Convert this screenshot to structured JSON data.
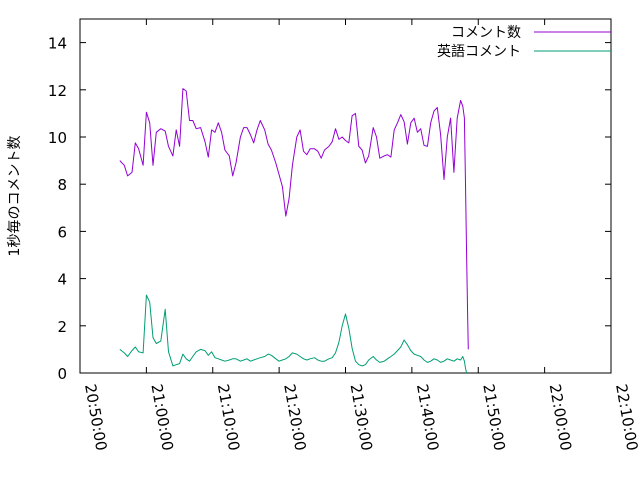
{
  "chart_data": {
    "type": "line",
    "title": "",
    "xlabel": "",
    "ylabel": "1秒毎のコメント数",
    "xlim": [
      "20:50:00",
      "22:10:00"
    ],
    "ylim": [
      0,
      15
    ],
    "x_ticks": [
      "20:50:00",
      "21:00:00",
      "21:10:00",
      "21:20:00",
      "21:30:00",
      "21:40:00",
      "21:50:00",
      "22:00:00",
      "22:10:00"
    ],
    "y_ticks": [
      0,
      2,
      4,
      6,
      8,
      10,
      12,
      14
    ],
    "grid": false,
    "legend_position": "top-right",
    "series": [
      {
        "name": "コメント数",
        "color": "#9400d3",
        "points": [
          [
            "20:56:00",
            9.0
          ],
          [
            "20:56:40",
            8.8
          ],
          [
            "20:57:10",
            8.35
          ],
          [
            "20:57:50",
            8.5
          ],
          [
            "20:58:20",
            9.75
          ],
          [
            "20:58:50",
            9.5
          ],
          [
            "20:59:30",
            8.8
          ],
          [
            "21:00:00",
            11.05
          ],
          [
            "21:00:30",
            10.6
          ],
          [
            "21:01:00",
            8.8
          ],
          [
            "21:01:30",
            10.2
          ],
          [
            "21:02:10",
            10.35
          ],
          [
            "21:02:50",
            10.25
          ],
          [
            "21:03:20",
            9.6
          ],
          [
            "21:04:00",
            9.2
          ],
          [
            "21:04:30",
            10.3
          ],
          [
            "21:05:00",
            9.6
          ],
          [
            "21:05:30",
            12.05
          ],
          [
            "21:06:00",
            11.95
          ],
          [
            "21:06:30",
            10.7
          ],
          [
            "21:07:00",
            10.7
          ],
          [
            "21:07:30",
            10.35
          ],
          [
            "21:08:10",
            10.4
          ],
          [
            "21:08:50",
            9.8
          ],
          [
            "21:09:20",
            9.15
          ],
          [
            "21:09:50",
            10.3
          ],
          [
            "21:10:20",
            10.2
          ],
          [
            "21:10:50",
            10.6
          ],
          [
            "21:11:20",
            10.2
          ],
          [
            "21:11:50",
            9.45
          ],
          [
            "21:12:30",
            9.2
          ],
          [
            "21:13:00",
            8.35
          ],
          [
            "21:13:30",
            8.9
          ],
          [
            "21:14:10",
            10.0
          ],
          [
            "21:14:40",
            10.4
          ],
          [
            "21:15:10",
            10.4
          ],
          [
            "21:15:40",
            10.1
          ],
          [
            "21:16:10",
            9.75
          ],
          [
            "21:16:40",
            10.3
          ],
          [
            "21:17:10",
            10.7
          ],
          [
            "21:17:50",
            10.3
          ],
          [
            "21:18:20",
            9.7
          ],
          [
            "21:18:50",
            9.45
          ],
          [
            "21:19:30",
            8.9
          ],
          [
            "21:20:00",
            8.4
          ],
          [
            "21:20:30",
            7.9
          ],
          [
            "21:21:00",
            6.65
          ],
          [
            "21:21:30",
            7.4
          ],
          [
            "21:22:00",
            8.8
          ],
          [
            "21:22:40",
            10.0
          ],
          [
            "21:23:10",
            10.3
          ],
          [
            "21:23:40",
            9.4
          ],
          [
            "21:24:10",
            9.25
          ],
          [
            "21:24:40",
            9.5
          ],
          [
            "21:25:20",
            9.5
          ],
          [
            "21:25:50",
            9.4
          ],
          [
            "21:26:20",
            9.1
          ],
          [
            "21:26:50",
            9.45
          ],
          [
            "21:27:30",
            9.6
          ],
          [
            "21:28:00",
            9.8
          ],
          [
            "21:28:30",
            10.35
          ],
          [
            "21:29:00",
            9.9
          ],
          [
            "21:29:30",
            10.0
          ],
          [
            "21:30:00",
            9.85
          ],
          [
            "21:30:30",
            9.75
          ],
          [
            "21:31:00",
            10.9
          ],
          [
            "21:31:30",
            11.0
          ],
          [
            "21:32:00",
            9.6
          ],
          [
            "21:32:30",
            9.45
          ],
          [
            "21:33:00",
            8.9
          ],
          [
            "21:33:30",
            9.2
          ],
          [
            "21:34:10",
            10.4
          ],
          [
            "21:34:40",
            10.0
          ],
          [
            "21:35:10",
            9.1
          ],
          [
            "21:35:50",
            9.2
          ],
          [
            "21:36:20",
            9.25
          ],
          [
            "21:36:50",
            9.15
          ],
          [
            "21:37:20",
            10.3
          ],
          [
            "21:37:50",
            10.6
          ],
          [
            "21:38:20",
            10.95
          ],
          [
            "21:38:50",
            10.65
          ],
          [
            "21:39:20",
            9.7
          ],
          [
            "21:39:50",
            10.6
          ],
          [
            "21:40:20",
            10.8
          ],
          [
            "21:40:50",
            10.2
          ],
          [
            "21:41:20",
            10.35
          ],
          [
            "21:41:50",
            9.65
          ],
          [
            "21:42:20",
            9.6
          ],
          [
            "21:42:50",
            10.6
          ],
          [
            "21:43:20",
            11.1
          ],
          [
            "21:43:50",
            11.25
          ],
          [
            "21:44:20",
            10.1
          ],
          [
            "21:44:50",
            8.2
          ],
          [
            "21:45:20",
            10.0
          ],
          [
            "21:45:50",
            10.8
          ],
          [
            "21:46:20",
            8.5
          ],
          [
            "21:46:50",
            10.8
          ],
          [
            "21:47:20",
            11.55
          ],
          [
            "21:47:40",
            11.3
          ],
          [
            "21:47:55",
            10.8
          ],
          [
            "21:48:05",
            8.0
          ],
          [
            "21:48:15",
            5.0
          ],
          [
            "21:48:25",
            2.3
          ],
          [
            "21:48:30",
            1.0
          ]
        ]
      },
      {
        "name": "英語コメント",
        "color": "#009e73",
        "points": [
          [
            "20:56:00",
            1.0
          ],
          [
            "20:56:40",
            0.85
          ],
          [
            "20:57:10",
            0.7
          ],
          [
            "20:57:50",
            0.95
          ],
          [
            "20:58:20",
            1.1
          ],
          [
            "20:58:50",
            0.9
          ],
          [
            "20:59:30",
            0.85
          ],
          [
            "21:00:00",
            3.3
          ],
          [
            "21:00:30",
            3.0
          ],
          [
            "21:01:00",
            1.5
          ],
          [
            "21:01:30",
            1.25
          ],
          [
            "21:02:10",
            1.35
          ],
          [
            "21:02:50",
            2.7
          ],
          [
            "21:03:20",
            0.9
          ],
          [
            "21:04:00",
            0.3
          ],
          [
            "21:04:30",
            0.35
          ],
          [
            "21:05:00",
            0.4
          ],
          [
            "21:05:30",
            0.8
          ],
          [
            "21:06:00",
            0.6
          ],
          [
            "21:06:30",
            0.5
          ],
          [
            "21:07:00",
            0.7
          ],
          [
            "21:07:30",
            0.9
          ],
          [
            "21:08:10",
            1.0
          ],
          [
            "21:08:50",
            0.95
          ],
          [
            "21:09:20",
            0.75
          ],
          [
            "21:09:50",
            0.9
          ],
          [
            "21:10:20",
            0.65
          ],
          [
            "21:10:50",
            0.6
          ],
          [
            "21:11:20",
            0.55
          ],
          [
            "21:11:50",
            0.5
          ],
          [
            "21:12:30",
            0.55
          ],
          [
            "21:13:00",
            0.6
          ],
          [
            "21:13:30",
            0.6
          ],
          [
            "21:14:10",
            0.5
          ],
          [
            "21:14:40",
            0.55
          ],
          [
            "21:15:10",
            0.6
          ],
          [
            "21:15:40",
            0.5
          ],
          [
            "21:16:10",
            0.55
          ],
          [
            "21:16:40",
            0.6
          ],
          [
            "21:17:10",
            0.65
          ],
          [
            "21:17:50",
            0.7
          ],
          [
            "21:18:20",
            0.8
          ],
          [
            "21:18:50",
            0.75
          ],
          [
            "21:19:30",
            0.6
          ],
          [
            "21:20:00",
            0.5
          ],
          [
            "21:20:30",
            0.55
          ],
          [
            "21:21:00",
            0.6
          ],
          [
            "21:21:30",
            0.7
          ],
          [
            "21:22:00",
            0.85
          ],
          [
            "21:22:40",
            0.8
          ],
          [
            "21:23:10",
            0.7
          ],
          [
            "21:23:40",
            0.6
          ],
          [
            "21:24:10",
            0.55
          ],
          [
            "21:24:40",
            0.6
          ],
          [
            "21:25:20",
            0.65
          ],
          [
            "21:25:50",
            0.55
          ],
          [
            "21:26:20",
            0.5
          ],
          [
            "21:26:50",
            0.5
          ],
          [
            "21:27:30",
            0.6
          ],
          [
            "21:28:00",
            0.65
          ],
          [
            "21:28:30",
            0.85
          ],
          [
            "21:29:00",
            1.3
          ],
          [
            "21:29:30",
            2.0
          ],
          [
            "21:30:00",
            2.5
          ],
          [
            "21:30:30",
            1.9
          ],
          [
            "21:31:00",
            1.05
          ],
          [
            "21:31:30",
            0.5
          ],
          [
            "21:32:00",
            0.35
          ],
          [
            "21:32:30",
            0.3
          ],
          [
            "21:33:00",
            0.35
          ],
          [
            "21:33:30",
            0.55
          ],
          [
            "21:34:10",
            0.7
          ],
          [
            "21:34:40",
            0.55
          ],
          [
            "21:35:10",
            0.45
          ],
          [
            "21:35:50",
            0.5
          ],
          [
            "21:36:20",
            0.6
          ],
          [
            "21:36:50",
            0.7
          ],
          [
            "21:37:20",
            0.8
          ],
          [
            "21:37:50",
            0.95
          ],
          [
            "21:38:20",
            1.1
          ],
          [
            "21:38:50",
            1.4
          ],
          [
            "21:39:20",
            1.2
          ],
          [
            "21:39:50",
            0.95
          ],
          [
            "21:40:20",
            0.8
          ],
          [
            "21:40:50",
            0.75
          ],
          [
            "21:41:20",
            0.7
          ],
          [
            "21:41:50",
            0.55
          ],
          [
            "21:42:20",
            0.45
          ],
          [
            "21:42:50",
            0.5
          ],
          [
            "21:43:20",
            0.6
          ],
          [
            "21:43:50",
            0.55
          ],
          [
            "21:44:20",
            0.45
          ],
          [
            "21:44:50",
            0.5
          ],
          [
            "21:45:20",
            0.6
          ],
          [
            "21:45:50",
            0.55
          ],
          [
            "21:46:20",
            0.5
          ],
          [
            "21:46:50",
            0.6
          ],
          [
            "21:47:20",
            0.55
          ],
          [
            "21:47:40",
            0.7
          ],
          [
            "21:47:55",
            0.5
          ],
          [
            "21:48:05",
            0.2
          ],
          [
            "21:48:15",
            0.0
          ]
        ]
      }
    ]
  }
}
